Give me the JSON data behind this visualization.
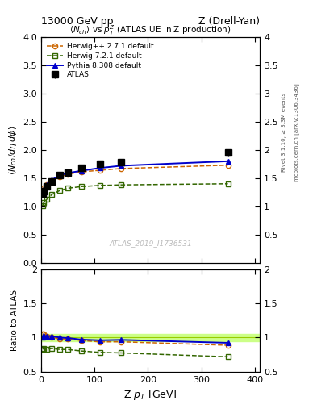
{
  "title_left": "13000 GeV pp",
  "title_right": "Z (Drell-Yan)",
  "plot_title": "$\\langle N_{ch}\\rangle$ vs $p_T^Z$ (ATLAS UE in Z production)",
  "xlabel": "Z $p_T$ [GeV]",
  "ylabel_main": "$\\langle N_{ch}/d\\eta\\, d\\phi\\rangle$",
  "ylabel_ratio": "Ratio to ATLAS",
  "right_label_top": "Rivet 3.1.10, ≥ 3.3M events",
  "right_label_bot": "mcplots.cern.ch [arXiv:1306.3436]",
  "watermark": "ATLAS_2019_I1736531",
  "atlas_x": [
    2.5,
    5.0,
    10.0,
    20.0,
    35.0,
    50.0,
    75.0,
    110.0,
    150.0,
    350.0
  ],
  "atlas_y": [
    1.22,
    1.27,
    1.35,
    1.44,
    1.55,
    1.6,
    1.68,
    1.75,
    1.78,
    1.95
  ],
  "atlas_yerr": [
    0.03,
    0.03,
    0.03,
    0.03,
    0.03,
    0.03,
    0.04,
    0.04,
    0.05,
    0.06
  ],
  "herwig271_x": [
    2.5,
    5.0,
    10.0,
    20.0,
    35.0,
    50.0,
    75.0,
    110.0,
    150.0,
    350.0
  ],
  "herwig271_y": [
    1.28,
    1.33,
    1.38,
    1.45,
    1.52,
    1.57,
    1.61,
    1.64,
    1.67,
    1.73
  ],
  "herwig721_x": [
    2.5,
    5.0,
    10.0,
    20.0,
    35.0,
    50.0,
    75.0,
    110.0,
    150.0,
    350.0
  ],
  "herwig721_y": [
    1.01,
    1.07,
    1.12,
    1.21,
    1.28,
    1.32,
    1.35,
    1.37,
    1.38,
    1.4
  ],
  "pythia_x": [
    2.5,
    5.0,
    10.0,
    20.0,
    35.0,
    50.0,
    75.0,
    110.0,
    150.0,
    350.0
  ],
  "pythia_y": [
    1.22,
    1.3,
    1.38,
    1.47,
    1.55,
    1.59,
    1.63,
    1.68,
    1.72,
    1.8
  ],
  "atlas_color": "#000000",
  "herwig271_color": "#cc6600",
  "herwig721_color": "#336600",
  "pythia_color": "#0000cc",
  "ylim_main": [
    0.0,
    4.0
  ],
  "ylim_ratio": [
    0.5,
    2.0
  ],
  "xlim": [
    0,
    410
  ],
  "ratio_band_fill": "#ccff88",
  "ratio_band_line": "#99cc00",
  "legend_labels": [
    "ATLAS",
    "Herwig++ 2.7.1 default",
    "Herwig 7.2.1 default",
    "Pythia 8.308 default"
  ]
}
